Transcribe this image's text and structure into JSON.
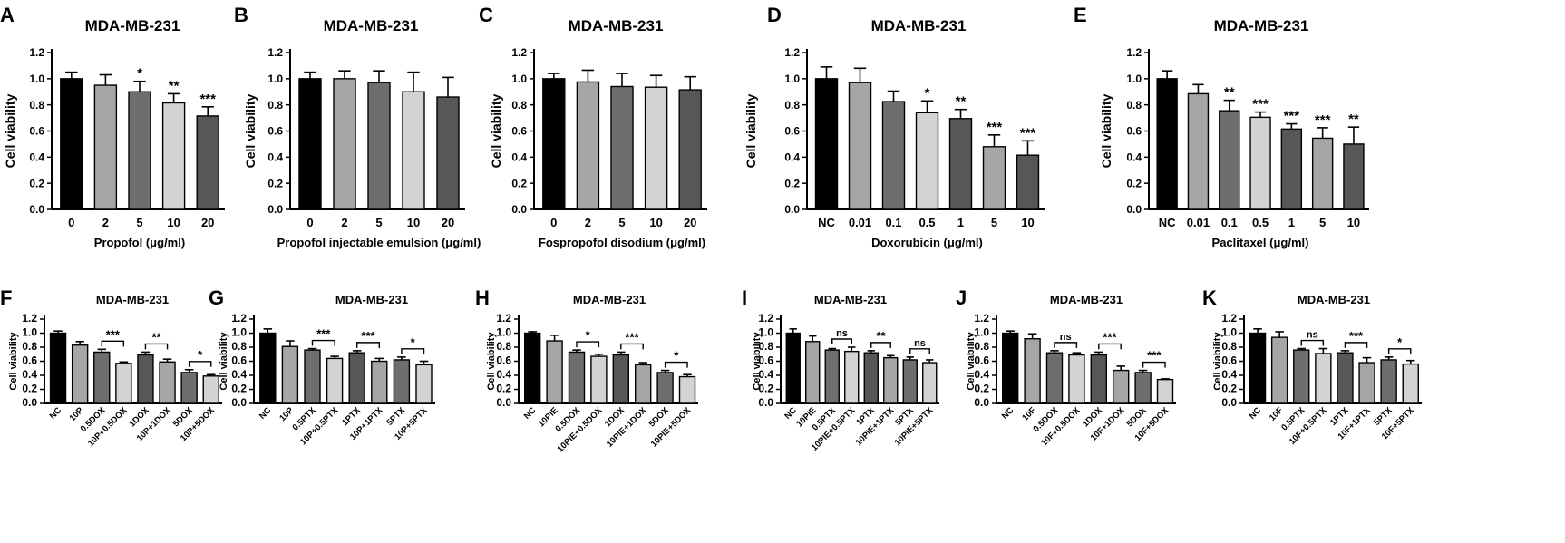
{
  "figure": {
    "colors": {
      "black": "#000000",
      "light": "#d3d3d3",
      "mid": "#a6a6a6",
      "dark": "#6e6e6e",
      "darker": "#575757"
    }
  },
  "panels": [
    {
      "label": "A",
      "title": "MDA-MB-231"
    },
    {
      "label": "B",
      "title": "MDA-MB-231"
    },
    {
      "label": "C",
      "title": "MDA-MB-231"
    },
    {
      "label": "D",
      "title": "MDA-MB-231"
    },
    {
      "label": "E",
      "title": "MDA-MB-231"
    },
    {
      "label": "F",
      "title": "MDA-MB-231"
    },
    {
      "label": "G",
      "title": "MDA-MB-231"
    },
    {
      "label": "H",
      "title": "MDA-MB-231"
    },
    {
      "label": "I",
      "title": "MDA-MB-231"
    },
    {
      "label": "J",
      "title": "MDA-MB-231"
    },
    {
      "label": "K",
      "title": "MDA-MB-231"
    }
  ],
  "chart_data": [
    {
      "type": "bar",
      "panel": "A",
      "title": "MDA-MB-231",
      "ylabel": "Cell viability",
      "xlabel": "Propofol (μg/ml)",
      "ylim": [
        0,
        1.2
      ],
      "yticks": [
        "0.0",
        "0.2",
        "0.4",
        "0.6",
        "0.8",
        "1.0",
        "1.2"
      ],
      "categories": [
        "0",
        "2",
        "5",
        "10",
        "20"
      ],
      "values": [
        1.0,
        0.95,
        0.9,
        0.815,
        0.715
      ],
      "errors": [
        0.05,
        0.08,
        0.08,
        0.07,
        0.07
      ],
      "colors": [
        "black",
        "mid",
        "dark",
        "light",
        "darker"
      ],
      "significance": [
        "",
        "",
        "*",
        "**",
        "***"
      ],
      "brackets": []
    },
    {
      "type": "bar",
      "panel": "B",
      "title": "MDA-MB-231",
      "ylabel": "Cell viability",
      "xlabel": "Propofol injectable emulsion (μg/ml)",
      "ylim": [
        0,
        1.2
      ],
      "yticks": [
        "0.0",
        "0.2",
        "0.4",
        "0.6",
        "0.8",
        "1.0",
        "1.2"
      ],
      "categories": [
        "0",
        "2",
        "5",
        "10",
        "20"
      ],
      "values": [
        1.0,
        1.0,
        0.97,
        0.9,
        0.86
      ],
      "errors": [
        0.05,
        0.06,
        0.09,
        0.15,
        0.15
      ],
      "colors": [
        "black",
        "mid",
        "dark",
        "light",
        "darker"
      ],
      "significance": [
        "",
        "",
        "",
        "",
        ""
      ],
      "brackets": []
    },
    {
      "type": "bar",
      "panel": "C",
      "title": "MDA-MB-231",
      "ylabel": "Cell viability",
      "xlabel": "Fospropofol disodium (μg/ml)",
      "ylim": [
        0,
        1.2
      ],
      "yticks": [
        "0.0",
        "0.2",
        "0.4",
        "0.6",
        "0.8",
        "1.0",
        "1.2"
      ],
      "categories": [
        "0",
        "2",
        "5",
        "10",
        "20"
      ],
      "values": [
        1.0,
        0.975,
        0.94,
        0.935,
        0.915
      ],
      "errors": [
        0.04,
        0.09,
        0.1,
        0.09,
        0.1
      ],
      "colors": [
        "black",
        "mid",
        "dark",
        "light",
        "darker"
      ],
      "significance": [
        "",
        "",
        "",
        "",
        ""
      ],
      "brackets": []
    },
    {
      "type": "bar",
      "panel": "D",
      "title": "MDA-MB-231",
      "ylabel": "Cell viability",
      "xlabel": "Doxorubicin (μg/ml)",
      "ylim": [
        0,
        1.2
      ],
      "yticks": [
        "0.0",
        "0.2",
        "0.4",
        "0.6",
        "0.8",
        "1.0",
        "1.2"
      ],
      "categories": [
        "NC",
        "0.01",
        "0.1",
        "0.5",
        "1",
        "5",
        "10"
      ],
      "values": [
        1.0,
        0.97,
        0.825,
        0.74,
        0.695,
        0.48,
        0.415
      ],
      "errors": [
        0.09,
        0.11,
        0.08,
        0.09,
        0.07,
        0.09,
        0.11
      ],
      "colors": [
        "black",
        "mid",
        "dark",
        "light",
        "darker",
        "mid",
        "darker"
      ],
      "significance": [
        "",
        "",
        "",
        "*",
        "**",
        "***",
        "***"
      ],
      "brackets": []
    },
    {
      "type": "bar",
      "panel": "E",
      "title": "MDA-MB-231",
      "ylabel": "Cell viability",
      "xlabel": "Paclitaxel (μg/ml)",
      "ylim": [
        0,
        1.2
      ],
      "yticks": [
        "0.0",
        "0.2",
        "0.4",
        "0.6",
        "0.8",
        "1.0",
        "1.2"
      ],
      "categories": [
        "NC",
        "0.01",
        "0.1",
        "0.5",
        "1",
        "5",
        "10"
      ],
      "values": [
        1.0,
        0.885,
        0.755,
        0.705,
        0.615,
        0.545,
        0.5
      ],
      "errors": [
        0.06,
        0.07,
        0.08,
        0.04,
        0.04,
        0.08,
        0.13
      ],
      "colors": [
        "black",
        "mid",
        "dark",
        "light",
        "darker",
        "mid",
        "darker"
      ],
      "significance": [
        "",
        "",
        "**",
        "***",
        "***",
        "***",
        "**"
      ],
      "brackets": []
    },
    {
      "type": "bar",
      "panel": "F",
      "title": "MDA-MB-231",
      "ylabel": "Cell viability",
      "xlabel": "",
      "ylim": [
        0,
        1.2
      ],
      "yticks": [
        "0.0",
        "0.2",
        "0.4",
        "0.6",
        "0.8",
        "1.0",
        "1.2"
      ],
      "categories": [
        "NC",
        "10P",
        "0.5DOX",
        "10P+0.5DOX",
        "1DOX",
        "10P+1DOX",
        "5DOX",
        "10P+5DOX"
      ],
      "values": [
        1.0,
        0.83,
        0.73,
        0.57,
        0.69,
        0.59,
        0.44,
        0.39
      ],
      "errors": [
        0.03,
        0.05,
        0.04,
        0.02,
        0.04,
        0.04,
        0.04,
        0.02
      ],
      "colors": [
        "black",
        "mid",
        "dark",
        "light",
        "darker",
        "mid",
        "dark",
        "light"
      ],
      "significance": [
        "",
        "",
        "",
        "",
        "",
        "",
        "",
        ""
      ],
      "brackets": [
        {
          "from": 2,
          "to": 3,
          "label": "***"
        },
        {
          "from": 4,
          "to": 5,
          "label": "**"
        },
        {
          "from": 6,
          "to": 7,
          "label": "*"
        }
      ]
    },
    {
      "type": "bar",
      "panel": "G",
      "title": "MDA-MB-231",
      "ylabel": "Cell viability",
      "xlabel": "",
      "ylim": [
        0,
        1.2
      ],
      "yticks": [
        "0.0",
        "0.2",
        "0.4",
        "0.6",
        "0.8",
        "1.0",
        "1.2"
      ],
      "categories": [
        "NC",
        "10P",
        "0.5PTX",
        "10P+0.5PTX",
        "1PTX",
        "10P+1PTX",
        "5PTX",
        "10P+5PTX"
      ],
      "values": [
        1.0,
        0.81,
        0.76,
        0.64,
        0.72,
        0.6,
        0.62,
        0.55
      ],
      "errors": [
        0.06,
        0.08,
        0.02,
        0.03,
        0.03,
        0.04,
        0.04,
        0.05
      ],
      "colors": [
        "black",
        "mid",
        "dark",
        "light",
        "darker",
        "mid",
        "dark",
        "light"
      ],
      "significance": [
        "",
        "",
        "",
        "",
        "",
        "",
        "",
        ""
      ],
      "brackets": [
        {
          "from": 2,
          "to": 3,
          "label": "***"
        },
        {
          "from": 4,
          "to": 5,
          "label": "***"
        },
        {
          "from": 6,
          "to": 7,
          "label": "*"
        }
      ]
    },
    {
      "type": "bar",
      "panel": "H",
      "title": "MDA-MB-231",
      "ylabel": "Cell viability",
      "xlabel": "",
      "ylim": [
        0,
        1.2
      ],
      "yticks": [
        "0.0",
        "0.2",
        "0.4",
        "0.6",
        "0.8",
        "1.0",
        "1.2"
      ],
      "categories": [
        "NC",
        "10PIE",
        "0.5DOX",
        "10PIE+0.5DOX",
        "1DOX",
        "10PIE+1DOX",
        "5DOX",
        "10PIE+5DOX"
      ],
      "values": [
        1.0,
        0.89,
        0.73,
        0.67,
        0.69,
        0.55,
        0.44,
        0.38
      ],
      "errors": [
        0.02,
        0.08,
        0.03,
        0.03,
        0.04,
        0.03,
        0.03,
        0.03
      ],
      "colors": [
        "black",
        "mid",
        "dark",
        "light",
        "darker",
        "mid",
        "dark",
        "light"
      ],
      "significance": [
        "",
        "",
        "",
        "",
        "",
        "",
        "",
        ""
      ],
      "brackets": [
        {
          "from": 2,
          "to": 3,
          "label": "*"
        },
        {
          "from": 4,
          "to": 5,
          "label": "***"
        },
        {
          "from": 6,
          "to": 7,
          "label": "*"
        }
      ]
    },
    {
      "type": "bar",
      "panel": "I",
      "title": "MDA-MB-231",
      "ylabel": "Cell viability",
      "xlabel": "",
      "ylim": [
        0,
        1.2
      ],
      "yticks": [
        "0.0",
        "0.2",
        "0.4",
        "0.6",
        "0.8",
        "1.0",
        "1.2"
      ],
      "categories": [
        "NC",
        "10PIE",
        "0.5PTX",
        "10PIE+0.5PTX",
        "1PTX",
        "10PIE+1PTX",
        "5PTX",
        "10PIE+5PTX"
      ],
      "values": [
        1.0,
        0.88,
        0.76,
        0.74,
        0.72,
        0.65,
        0.62,
        0.58
      ],
      "errors": [
        0.06,
        0.08,
        0.02,
        0.06,
        0.03,
        0.03,
        0.04,
        0.04
      ],
      "colors": [
        "black",
        "mid",
        "dark",
        "light",
        "darker",
        "mid",
        "dark",
        "light"
      ],
      "significance": [
        "",
        "",
        "",
        "",
        "",
        "",
        "",
        ""
      ],
      "brackets": [
        {
          "from": 2,
          "to": 3,
          "label": "ns"
        },
        {
          "from": 4,
          "to": 5,
          "label": "**"
        },
        {
          "from": 6,
          "to": 7,
          "label": "ns"
        }
      ]
    },
    {
      "type": "bar",
      "panel": "J",
      "title": "MDA-MB-231",
      "ylabel": "Cell viability",
      "xlabel": "",
      "ylim": [
        0,
        1.2
      ],
      "yticks": [
        "0.0",
        "0.2",
        "0.4",
        "0.6",
        "0.8",
        "1.0",
        "1.2"
      ],
      "categories": [
        "NC",
        "10F",
        "0.5DOX",
        "10F+0.5DOX",
        "1DOX",
        "10F+1DOX",
        "5DOX",
        "10F+5DOX"
      ],
      "values": [
        1.0,
        0.92,
        0.72,
        0.69,
        0.69,
        0.47,
        0.44,
        0.34
      ],
      "errors": [
        0.03,
        0.07,
        0.03,
        0.03,
        0.04,
        0.06,
        0.03,
        0.01
      ],
      "colors": [
        "black",
        "mid",
        "dark",
        "light",
        "darker",
        "mid",
        "dark",
        "light"
      ],
      "significance": [
        "",
        "",
        "",
        "",
        "",
        "",
        "",
        ""
      ],
      "brackets": [
        {
          "from": 2,
          "to": 3,
          "label": "ns"
        },
        {
          "from": 4,
          "to": 5,
          "label": "***"
        },
        {
          "from": 6,
          "to": 7,
          "label": "***"
        }
      ]
    },
    {
      "type": "bar",
      "panel": "K",
      "title": "MDA-MB-231",
      "ylabel": "Cell viability",
      "xlabel": "",
      "ylim": [
        0,
        1.2
      ],
      "yticks": [
        "0.0",
        "0.2",
        "0.4",
        "0.6",
        "0.8",
        "1.0",
        "1.2"
      ],
      "categories": [
        "NC",
        "10F",
        "0.5PTX",
        "10F+0.5PTX",
        "1PTX",
        "10F+1PTX",
        "5PTX",
        "10F+5PTX"
      ],
      "values": [
        1.0,
        0.94,
        0.76,
        0.71,
        0.72,
        0.58,
        0.62,
        0.56
      ],
      "errors": [
        0.06,
        0.08,
        0.02,
        0.07,
        0.03,
        0.07,
        0.04,
        0.05
      ],
      "colors": [
        "black",
        "mid",
        "dark",
        "light",
        "darker",
        "mid",
        "dark",
        "light"
      ],
      "significance": [
        "",
        "",
        "",
        "",
        "",
        "",
        "",
        ""
      ],
      "brackets": [
        {
          "from": 2,
          "to": 3,
          "label": "ns"
        },
        {
          "from": 4,
          "to": 5,
          "label": "***"
        },
        {
          "from": 6,
          "to": 7,
          "label": "*"
        }
      ]
    }
  ]
}
